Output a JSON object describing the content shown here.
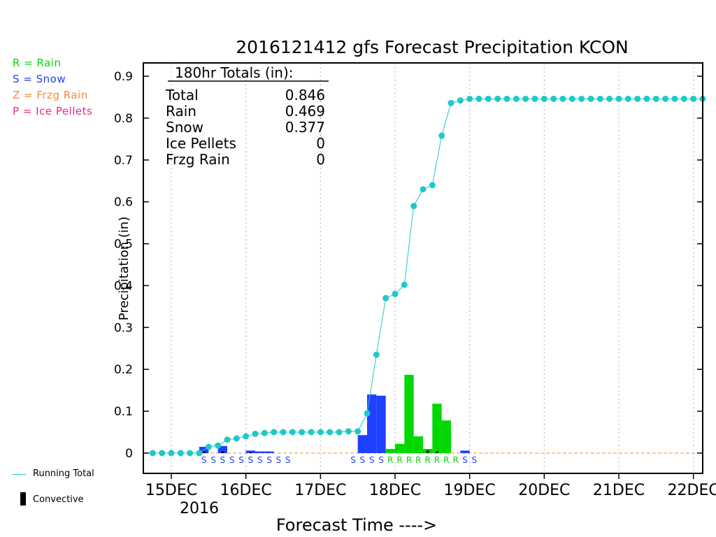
{
  "chart_data": {
    "type": "bar",
    "title": "2016121412 gfs Forecast Precipitation KCON",
    "xlabel": "Forecast Time ---->",
    "ylabel": "Precipitation (in)",
    "ylim": [
      0,
      0.9
    ],
    "y_ticks": [
      "0",
      "0.1",
      "0.2",
      "0.3",
      "0.4",
      "0.5",
      "0.6",
      "0.7",
      "0.8",
      "0.9"
    ],
    "x_tick_labels": [
      "15DEC",
      "16DEC",
      "17DEC",
      "18DEC",
      "19DEC",
      "20DEC",
      "21DEC",
      "22DEC"
    ],
    "x_year_label": "2016",
    "x_range_hours": [
      -9,
      171
    ],
    "grid": "vertical dotted at day boundaries",
    "precip_type_legend": [
      {
        "code": "R",
        "text": "R = Rain",
        "color": "#00d800"
      },
      {
        "code": "S",
        "text": "S = Snow",
        "color": "#2040ff"
      },
      {
        "code": "Z",
        "text": "Z = Frzg Rain",
        "color": "#f08c3c"
      },
      {
        "code": "P",
        "text": "P = Ice Pellets",
        "color": "#e8288c"
      }
    ],
    "bottom_legend": {
      "running_total": "Running Total",
      "convective": "Convective"
    },
    "totals_box": {
      "header": "180hr Totals (in):",
      "rows": [
        {
          "label": "Total",
          "value": "0.846"
        },
        {
          "label": "Rain",
          "value": "0.469"
        },
        {
          "label": "Snow",
          "value": "0.377"
        },
        {
          "label": "Ice Pellets",
          "value": "0"
        },
        {
          "label": "Frzg Rain",
          "value": "0"
        }
      ]
    },
    "colors": {
      "rain": "#00d800",
      "snow": "#2040ff",
      "running_total": "#20c8c8",
      "convective": "#000000",
      "zero_line": "#f08c3c"
    },
    "running_total": {
      "x_hours": [
        -6,
        -3,
        0,
        3,
        6,
        9,
        12,
        15,
        18,
        21,
        24,
        27,
        30,
        33,
        36,
        39,
        42,
        45,
        48,
        51,
        54,
        57,
        60,
        63,
        66,
        69,
        72,
        75,
        78,
        81,
        84,
        87,
        90,
        93,
        96,
        99,
        102,
        105,
        108,
        111,
        114,
        117,
        120,
        123,
        126,
        129,
        132,
        135,
        138,
        141,
        144,
        147,
        150,
        153,
        156,
        159,
        162,
        165,
        168,
        171
      ],
      "values": [
        0,
        0,
        0,
        0,
        0,
        0,
        0.015,
        0.018,
        0.032,
        0.035,
        0.04,
        0.046,
        0.048,
        0.05,
        0.05,
        0.05,
        0.05,
        0.05,
        0.05,
        0.05,
        0.05,
        0.052,
        0.052,
        0.095,
        0.235,
        0.37,
        0.38,
        0.402,
        0.59,
        0.63,
        0.64,
        0.758,
        0.836,
        0.842,
        0.846,
        0.846,
        0.846,
        0.846,
        0.846,
        0.846,
        0.846,
        0.846,
        0.846,
        0.846,
        0.846,
        0.846,
        0.846,
        0.846,
        0.846,
        0.846,
        0.846,
        0.846,
        0.846,
        0.846,
        0.846,
        0.846,
        0.846,
        0.846,
        0.846,
        0.846
      ]
    },
    "period_bars": [
      {
        "x_hours": 12,
        "value": 0.015,
        "type": "snow"
      },
      {
        "x_hours": 18,
        "value": 0.017,
        "type": "snow"
      },
      {
        "x_hours": 27,
        "value": 0.006,
        "type": "snow"
      },
      {
        "x_hours": 30,
        "value": 0.004,
        "type": "snow"
      },
      {
        "x_hours": 33,
        "value": 0.004,
        "type": "snow"
      },
      {
        "x_hours": 63,
        "value": 0.043,
        "type": "snow"
      },
      {
        "x_hours": 66,
        "value": 0.14,
        "type": "snow"
      },
      {
        "x_hours": 69,
        "value": 0.137,
        "type": "snow"
      },
      {
        "x_hours": 72,
        "value": 0.01,
        "type": "rain"
      },
      {
        "x_hours": 75,
        "value": 0.022,
        "type": "rain"
      },
      {
        "x_hours": 78,
        "value": 0.187,
        "type": "rain"
      },
      {
        "x_hours": 81,
        "value": 0.04,
        "type": "rain"
      },
      {
        "x_hours": 84,
        "value": 0.01,
        "type": "rain"
      },
      {
        "x_hours": 87,
        "value": 0.118,
        "type": "rain"
      },
      {
        "x_hours": 90,
        "value": 0.078,
        "type": "rain"
      },
      {
        "x_hours": 96,
        "value": 0.006,
        "type": "snow"
      }
    ],
    "convective_bars": [
      {
        "x_hours": 12,
        "value": 0.004
      },
      {
        "x_hours": 18,
        "value": 0.004
      },
      {
        "x_hours": 27,
        "value": 0.002
      },
      {
        "x_hours": 84,
        "value": 0.006
      },
      {
        "x_hours": 87,
        "value": 0.004
      }
    ],
    "type_markers": [
      {
        "x_hours": 12,
        "code": "S"
      },
      {
        "x_hours": 15,
        "code": "S"
      },
      {
        "x_hours": 18,
        "code": "S"
      },
      {
        "x_hours": 21,
        "code": "S"
      },
      {
        "x_hours": 24,
        "code": "S"
      },
      {
        "x_hours": 27,
        "code": "S"
      },
      {
        "x_hours": 30,
        "code": "S"
      },
      {
        "x_hours": 33,
        "code": "S"
      },
      {
        "x_hours": 36,
        "code": "S"
      },
      {
        "x_hours": 39,
        "code": "S"
      },
      {
        "x_hours": 60,
        "code": "S"
      },
      {
        "x_hours": 63,
        "code": "S"
      },
      {
        "x_hours": 66,
        "code": "S"
      },
      {
        "x_hours": 69,
        "code": "S"
      },
      {
        "x_hours": 72,
        "code": "R"
      },
      {
        "x_hours": 75,
        "code": "R"
      },
      {
        "x_hours": 78,
        "code": "R"
      },
      {
        "x_hours": 81,
        "code": "R"
      },
      {
        "x_hours": 84,
        "code": "R"
      },
      {
        "x_hours": 87,
        "code": "R"
      },
      {
        "x_hours": 90,
        "code": "R"
      },
      {
        "x_hours": 93,
        "code": "R"
      },
      {
        "x_hours": 96,
        "code": "S"
      },
      {
        "x_hours": 99,
        "code": "S"
      }
    ]
  }
}
